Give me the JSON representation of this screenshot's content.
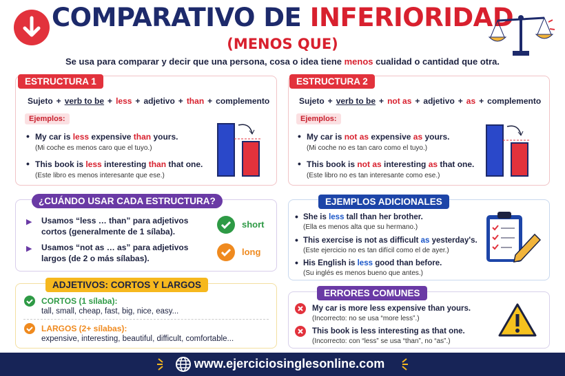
{
  "header": {
    "title_main": "COMPARATIVO DE",
    "title_highlight": "INFERIORIDAD",
    "subtitle": "(MENOS QUE)",
    "description": [
      "Se usa para comparar y decir que una persona, cosa o idea tiene ",
      "menos",
      " cualidad o cantidad que otra."
    ]
  },
  "structure_1": {
    "label": "ESTRUCTURA 1",
    "formula": [
      "Sujeto",
      "+",
      "verb to be",
      "+",
      "less",
      "+",
      "adjetivo",
      "+",
      "than",
      "+",
      "complemento"
    ],
    "examples_label": "Ejemplos:",
    "examples": [
      {
        "sentence": [
          "My car is ",
          "less",
          " expensive ",
          "than",
          " yours."
        ],
        "translation": "(Mi coche es menos caro que el tuyo.)"
      },
      {
        "sentence": [
          "This book is ",
          "less",
          " interesting ",
          "than",
          " that one."
        ],
        "translation": "(Este libro es menos interesante que ese.)"
      }
    ]
  },
  "structure_2": {
    "label": "ESTRUCTURA 2",
    "formula": [
      "Sujeto",
      "+",
      "verb to be",
      "+",
      "not as",
      "+",
      "adjetivo",
      "+",
      "as",
      "+",
      "complemento"
    ],
    "examples_label": "Ejemplos:",
    "examples": [
      {
        "sentence": [
          "My car is ",
          "not as",
          " expensive ",
          "as",
          " yours."
        ],
        "translation": "(Mi coche no es tan caro como el tuyo.)"
      },
      {
        "sentence": [
          "This book is ",
          "not as",
          " interesting ",
          "as",
          " that one."
        ],
        "translation": "(Este libro no es tan interesante como ese.)"
      }
    ]
  },
  "when_to_use": {
    "title": "¿CUÁNDO USAR CADA ESTRUCTURA?",
    "items": [
      {
        "text": "Usamos “less … than” para adjetivos cortos (generalmente de 1 sílaba).",
        "tag": "short"
      },
      {
        "text": "Usamos “not as … as” para adjetivos largos (de 2 o más sílabas).",
        "tag": "long"
      }
    ]
  },
  "more_examples": {
    "title": "EJEMPLOS ADICIONALES",
    "items": [
      {
        "sentence": [
          "She is ",
          "less",
          " tall than her brother."
        ],
        "translation": "(Ella es menos alta que su hermano.)"
      },
      {
        "sentence": [
          "This exercise is not as difficult ",
          "as",
          " yesterday's."
        ],
        "translation": "(Este ejercicio no es tan difícil como el de ayer.)"
      },
      {
        "sentence": [
          "His English is ",
          "less",
          " good than before."
        ],
        "translation": "(Su inglés es menos bueno que antes.)"
      }
    ]
  },
  "adjectives": {
    "title": "ADJETIVOS: CORTOS Y LARGOS",
    "short_label": "CORTOS (1 sílaba):",
    "short_list": "tall, small, cheap, fast, big, nice, easy...",
    "long_label": "LARGOS (2+ sílabas):",
    "long_list": "expensive, interesting, beautiful, difficult, comfortable..."
  },
  "common_errors": {
    "title": "ERRORES COMUNES",
    "items": [
      {
        "text": "My car is more less expensive than yours.",
        "note": "(Incorrecto: no se usa “more less”.)"
      },
      {
        "text": "This book is less interesting as that one.",
        "note": "(Incorrecto: con “less” se usa “than”, no “as”.)"
      }
    ]
  },
  "footer": {
    "url": "www.ejerciciosinglesonline.com"
  }
}
